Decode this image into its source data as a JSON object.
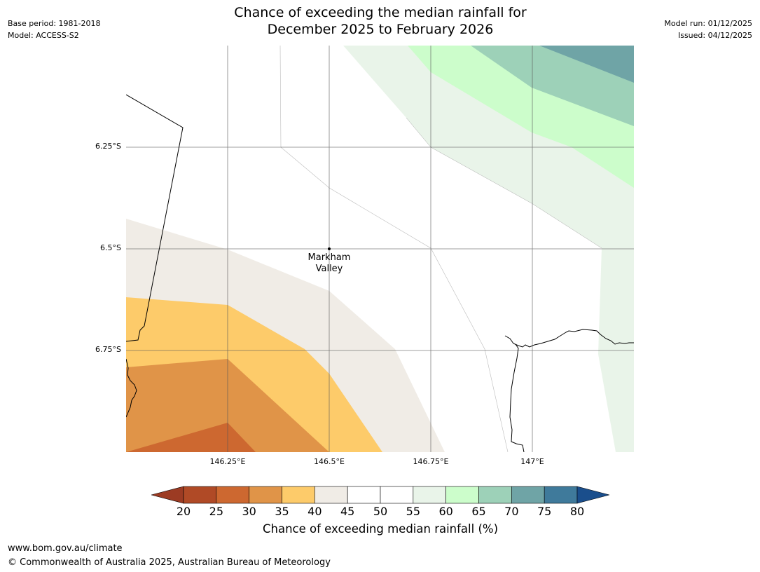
{
  "header": {
    "title_line1": "Chance of exceeding the median rainfall for",
    "title_line2": "December 2025 to February 2026",
    "base_period": "Base period: 1981-2018",
    "model": "Model: ACCESS-S2",
    "model_run": "Model run: 01/12/2025",
    "issued": "Issued: 04/12/2025"
  },
  "map": {
    "place_label_line1": "Markham",
    "place_label_line2": "Valley",
    "lat_labels": [
      "6.25°S",
      "6.5°S",
      "6.75°S"
    ],
    "lon_labels": [
      "146.25°E",
      "146.5°E",
      "146.75°E",
      "147°E"
    ]
  },
  "colorbar": {
    "ticks": [
      "20",
      "25",
      "30",
      "35",
      "40",
      "45",
      "50",
      "55",
      "60",
      "65",
      "70",
      "75",
      "80"
    ],
    "colors": [
      "#9c3b23",
      "#b04a26",
      "#cd6830",
      "#e09448",
      "#fdcb6a",
      "#f0ece6",
      "#ffffff",
      "#ffffff",
      "#e9f4e9",
      "#ccfdcb",
      "#9dd1b8",
      "#6fa4a6",
      "#3f7a9b",
      "#1a4e8c"
    ],
    "label": "Chance of exceeding median rainfall (%)"
  },
  "footer": {
    "url": "www.bom.gov.au/climate",
    "copyright": "© Commonwealth of Australia 2025, Australian Bureau of Meteorology"
  }
}
